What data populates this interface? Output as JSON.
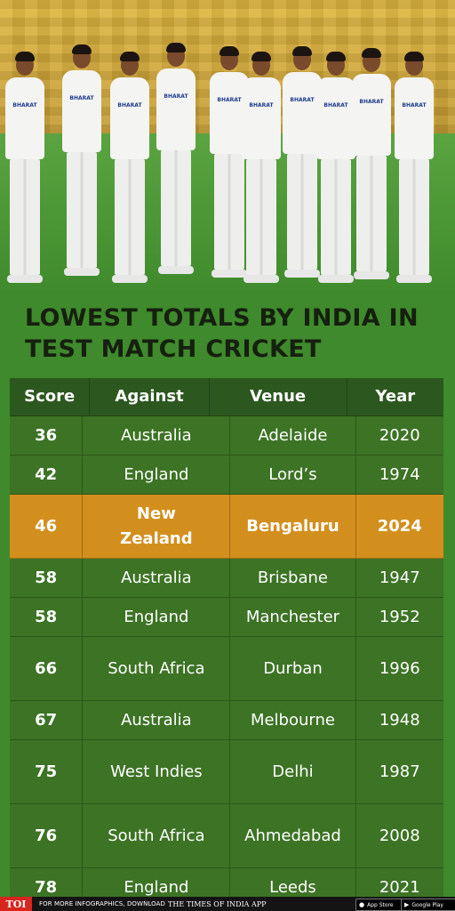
{
  "title": "LOWEST TOTALS BY INDIA IN TEST MATCH CRICKET",
  "chart_data": {
    "type": "table",
    "title": "LOWEST TOTALS BY INDIA IN TEST MATCH CRICKET",
    "columns": [
      "Score",
      "Against",
      "Venue",
      "Year"
    ],
    "rows": [
      {
        "score": "36",
        "against": "Australia",
        "venue": "Adelaide",
        "year": "2020"
      },
      {
        "score": "42",
        "against": "England",
        "venue": "Lord’s",
        "year": "1974"
      },
      {
        "score": "46",
        "against": "New Zealand",
        "venue": "Bengaluru",
        "year": "2024"
      },
      {
        "score": "58",
        "against": "Australia",
        "venue": "Brisbane",
        "year": "1947"
      },
      {
        "score": "58",
        "against": "England",
        "venue": "Manchester",
        "year": "1952"
      },
      {
        "score": "66",
        "against": "South Africa",
        "venue": "Durban",
        "year": "1996"
      },
      {
        "score": "67",
        "against": "Australia",
        "venue": "Melbourne",
        "year": "1948"
      },
      {
        "score": "75",
        "against": "West Indies",
        "venue": "Delhi",
        "year": "1987"
      },
      {
        "score": "76",
        "against": "South Africa",
        "venue": "Ahmedabad",
        "year": "2008"
      },
      {
        "score": "78",
        "against": "England",
        "venue": "Leeds",
        "year": "2021"
      }
    ],
    "highlight_row": 2
  },
  "colors": {
    "header": "#2c5820",
    "row": "#3c6e23",
    "highlight": "#d38f1e",
    "title_text": "#16200f"
  },
  "footer": {
    "logo": "TOI",
    "promo": "FOR MORE INFOGRAPHICS, DOWNLOAD",
    "app_name": "THE TIMES OF INDIA APP",
    "app_store": "App Store",
    "google_play": "Google Play"
  },
  "icons": {
    "apple": "apple-icon",
    "google_play": "play-icon"
  }
}
